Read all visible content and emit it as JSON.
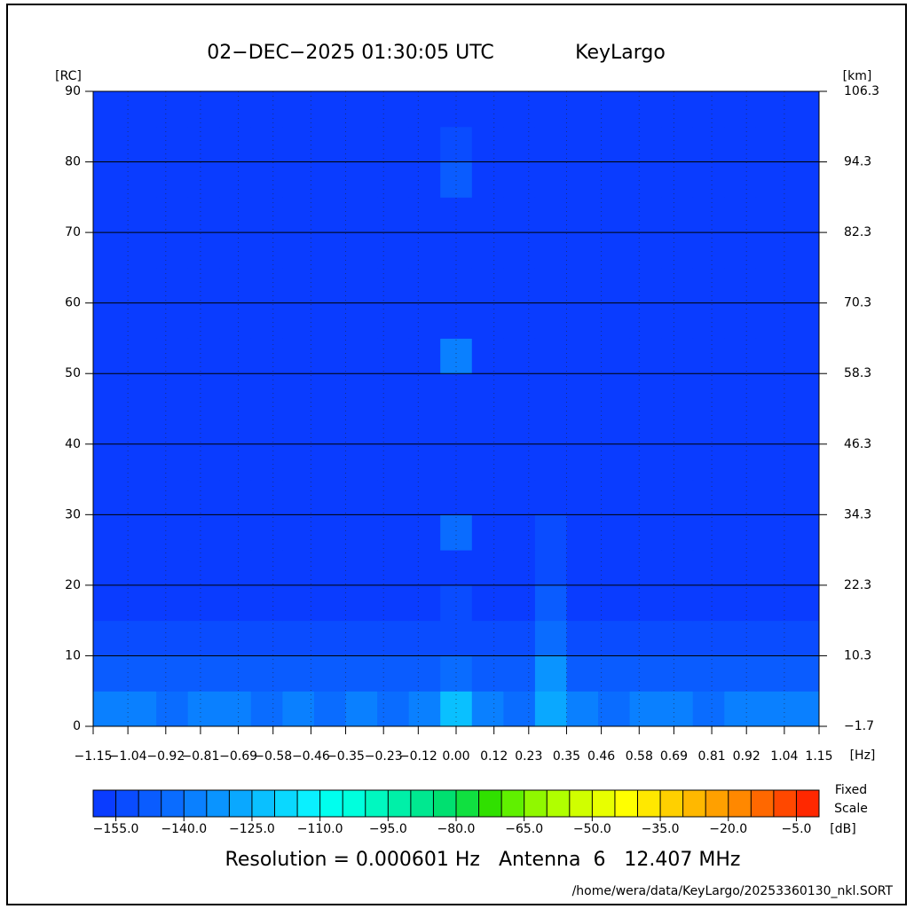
{
  "chart_data": {
    "type": "heatmap",
    "title": "02−DEC−2025 01:30:05 UTC",
    "subtitle": "KeyLargo",
    "y_label": "[RC]",
    "y2_label": "[km]",
    "x_label": "[Hz]",
    "colorbar_label": "[dB]",
    "colorbar_note": [
      "Fixed",
      "Scale"
    ],
    "footer": "Resolution = 0.000601 Hz   Antenna  6   12.407 MHz",
    "source": "/home/wera/data/KeyLargo/20253360130_nkl.SORT",
    "xlim": [
      -1.15,
      1.15
    ],
    "xticks": [
      {
        "value": -1.15,
        "label": "−1.15"
      },
      {
        "value": -1.04,
        "label": "−1.04"
      },
      {
        "value": -0.92,
        "label": "−0.92"
      },
      {
        "value": -0.81,
        "label": "−0.81"
      },
      {
        "value": -0.69,
        "label": "−0.69"
      },
      {
        "value": -0.58,
        "label": "−0.58"
      },
      {
        "value": -0.46,
        "label": "−0.46"
      },
      {
        "value": -0.35,
        "label": "−0.35"
      },
      {
        "value": -0.23,
        "label": "−0.23"
      },
      {
        "value": -0.12,
        "label": "−0.12"
      },
      {
        "value": 0,
        "label": "0.00"
      },
      0.12,
      0.23,
      0.35,
      0.46,
      0.58,
      0.69,
      0.81,
      0.92,
      1.04,
      1.15
    ],
    "ylim": [
      0,
      90
    ],
    "yticks": [
      0,
      10,
      20,
      30,
      40,
      50,
      60,
      70,
      80,
      90
    ],
    "y2lim": [
      -1.7,
      106.3
    ],
    "y2ticks": [
      {
        "value": -1.7,
        "label": "−1.7"
      },
      10.3,
      22.3,
      34.3,
      46.3,
      58.3,
      70.3,
      82.3,
      94.3,
      106.3
    ],
    "grid": true,
    "xbins": [
      -1.15,
      -1.05,
      -0.95,
      -0.85,
      -0.75,
      -0.65,
      -0.55,
      -0.45,
      -0.35,
      -0.25,
      -0.15,
      -0.05,
      0.05,
      0.15,
      0.25,
      0.35,
      0.45,
      0.55,
      0.65,
      0.75,
      0.85,
      0.95,
      1.05,
      1.15
    ],
    "ybins": [
      0,
      5,
      10,
      15,
      20,
      25,
      30,
      35,
      40,
      45,
      50,
      55,
      60,
      65,
      70,
      75,
      80,
      85,
      90
    ],
    "z": [
      [
        -140,
        -138,
        -142,
        -140,
        -138,
        -142,
        -140,
        -142,
        -140,
        -142,
        -140,
        -125,
        -140,
        -142,
        -130,
        -140,
        -142,
        -140,
        -138,
        -142,
        -140,
        -138,
        -140
      ],
      [
        -148,
        -146,
        -148,
        -150,
        -146,
        -148,
        -147,
        -148,
        -150,
        -148,
        -149,
        -145,
        -148,
        -150,
        -135,
        -148,
        -149,
        -148,
        -146,
        -148,
        -149,
        -147,
        -148
      ],
      [
        -153,
        -152,
        -154,
        -153,
        -152,
        -153,
        -154,
        -153,
        -152,
        -154,
        -153,
        -152,
        -154,
        -153,
        -145,
        -153,
        -154,
        -152,
        -153,
        -154,
        -153,
        -152,
        -153
      ],
      [
        -157,
        -157,
        -157,
        -157,
        -157,
        -157,
        -157,
        -157,
        -157,
        -157,
        -157,
        -155,
        -157,
        -157,
        -150,
        -157,
        -157,
        -157,
        -157,
        -157,
        -157,
        -157,
        -157
      ],
      [
        -157,
        -157,
        -157,
        -157,
        -157,
        -157,
        -157,
        -157,
        -157,
        -157,
        -157,
        -157,
        -157,
        -157,
        -152,
        -157,
        -157,
        -157,
        -157,
        -157,
        -157,
        -157,
        -157
      ],
      [
        -157,
        -157,
        -157,
        -157,
        -157,
        -157,
        -157,
        -157,
        -157,
        -157,
        -157,
        -142,
        -157,
        -157,
        -153,
        -157,
        -157,
        -157,
        -157,
        -157,
        -157,
        -157,
        -157
      ],
      [
        -157,
        -157,
        -157,
        -157,
        -157,
        -157,
        -157,
        -157,
        -157,
        -157,
        -157,
        -157,
        -157,
        -157,
        -157,
        -157,
        -157,
        -157,
        -157,
        -157,
        -157,
        -157,
        -157
      ],
      [
        -157,
        -157,
        -157,
        -157,
        -157,
        -157,
        -157,
        -157,
        -157,
        -157,
        -157,
        -157,
        -157,
        -157,
        -157,
        -157,
        -157,
        -157,
        -157,
        -157,
        -157,
        -157,
        -157
      ],
      [
        -157,
        -157,
        -157,
        -157,
        -157,
        -157,
        -157,
        -157,
        -157,
        -157,
        -157,
        -157,
        -157,
        -157,
        -157,
        -157,
        -157,
        -157,
        -157,
        -157,
        -157,
        -157,
        -157
      ],
      [
        -157,
        -157,
        -157,
        -157,
        -157,
        -157,
        -157,
        -157,
        -157,
        -157,
        -157,
        -157,
        -157,
        -157,
        -157,
        -157,
        -157,
        -157,
        -157,
        -157,
        -157,
        -157,
        -157
      ],
      [
        -157,
        -157,
        -157,
        -157,
        -157,
        -157,
        -157,
        -157,
        -157,
        -157,
        -157,
        -140,
        -157,
        -157,
        -157,
        -157,
        -157,
        -157,
        -157,
        -157,
        -157,
        -157,
        -157
      ],
      [
        -157,
        -157,
        -157,
        -157,
        -157,
        -157,
        -157,
        -157,
        -157,
        -157,
        -157,
        -157,
        -157,
        -157,
        -157,
        -157,
        -157,
        -157,
        -157,
        -157,
        -157,
        -157,
        -157
      ],
      [
        -157,
        -157,
        -157,
        -157,
        -157,
        -157,
        -157,
        -157,
        -157,
        -157,
        -157,
        -157,
        -157,
        -157,
        -157,
        -157,
        -157,
        -157,
        -157,
        -157,
        -157,
        -157,
        -157
      ],
      [
        -157,
        -157,
        -157,
        -157,
        -157,
        -157,
        -157,
        -157,
        -157,
        -157,
        -157,
        -157,
        -157,
        -157,
        -157,
        -157,
        -157,
        -157,
        -157,
        -157,
        -157,
        -157,
        -157
      ],
      [
        -157,
        -157,
        -157,
        -157,
        -157,
        -157,
        -157,
        -157,
        -157,
        -157,
        -157,
        -157,
        -157,
        -157,
        -157,
        -157,
        -157,
        -157,
        -157,
        -157,
        -157,
        -157,
        -157
      ],
      [
        -157,
        -157,
        -157,
        -157,
        -157,
        -157,
        -157,
        -157,
        -157,
        -157,
        -157,
        -150,
        -157,
        -157,
        -157,
        -157,
        -157,
        -157,
        -157,
        -157,
        -157,
        -157,
        -157
      ],
      [
        -157,
        -157,
        -157,
        -157,
        -157,
        -157,
        -157,
        -157,
        -157,
        -157,
        -157,
        -152,
        -157,
        -157,
        -157,
        -157,
        -157,
        -157,
        -157,
        -157,
        -157,
        -157,
        -157
      ],
      [
        -157,
        -157,
        -157,
        -157,
        -157,
        -157,
        -157,
        -157,
        -157,
        -157,
        -157,
        -157,
        -157,
        -157,
        -157,
        -157,
        -157,
        -157,
        -157,
        -157,
        -157,
        -157,
        -157
      ]
    ],
    "clim": [
      -160,
      0
    ],
    "cticks": [
      {
        "value": -155,
        "label": "−155.0"
      },
      {
        "value": -140,
        "label": "−140.0"
      },
      {
        "value": -125,
        "label": "−125.0"
      },
      {
        "value": -110,
        "label": "−110.0"
      },
      {
        "value": -95,
        "label": "−95.0"
      },
      {
        "value": -80,
        "label": "−80.0"
      },
      {
        "value": -65,
        "label": "−65.0"
      },
      {
        "value": -50,
        "label": "−50.0"
      },
      {
        "value": -35,
        "label": "−35.0"
      },
      {
        "value": -20,
        "label": "−20.0"
      },
      {
        "value": -5,
        "label": "−5.0"
      }
    ],
    "colorscale": [
      "#0a3cff",
      "#0a4cff",
      "#0a5cff",
      "#0a6cff",
      "#0a80ff",
      "#0a94ff",
      "#0aa8ff",
      "#0ac0ff",
      "#0ad8ff",
      "#0af0ff",
      "#00ffee",
      "#00ffdd",
      "#00f8c0",
      "#00f0a8",
      "#00e890",
      "#00e070",
      "#10e040",
      "#30e000",
      "#60f000",
      "#90f800",
      "#b0ff00",
      "#d0ff00",
      "#e8ff00",
      "#ffff00",
      "#ffe800",
      "#ffd000",
      "#ffb800",
      "#ffa000",
      "#ff8800",
      "#ff6800",
      "#ff4800",
      "#ff2800"
    ]
  }
}
